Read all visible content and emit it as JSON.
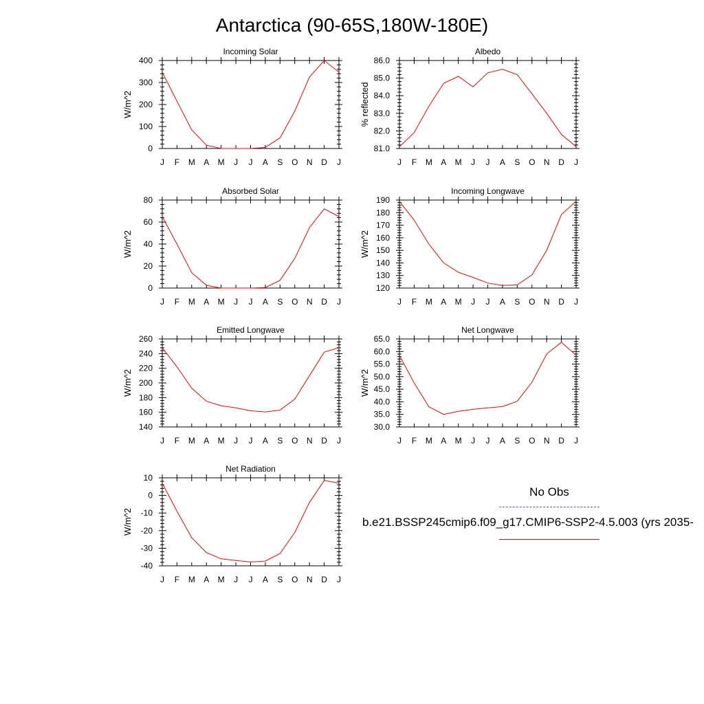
{
  "figure": {
    "title": "Antarctica (90-65S,180W-180E)",
    "legend": {
      "obs_label": "No Obs",
      "case_label": "b.e21.BSSP245cmip6.f09_g17.CMIP6-SSP2-4.5.003 (yrs 2035-",
      "obs_color": "#4d4dff",
      "model_color": "#ff0000"
    }
  },
  "chart_data": [
    {
      "type": "line",
      "title": "Incoming Solar",
      "ylabel": "W/m^2",
      "categories": [
        "J",
        "F",
        "M",
        "A",
        "M",
        "J",
        "J",
        "A",
        "S",
        "O",
        "N",
        "D",
        "J"
      ],
      "ylim": [
        0,
        400
      ],
      "yticks": [
        "0",
        "100",
        "200",
        "300",
        "400"
      ],
      "series": [
        {
          "color": "#ff0000",
          "values": [
            347,
            215,
            85,
            15,
            0,
            0,
            0,
            5,
            48,
            170,
            325,
            400,
            347
          ]
        }
      ]
    },
    {
      "type": "line",
      "title": "Albedo",
      "ylabel": "% reflected",
      "categories": [
        "J",
        "F",
        "M",
        "A",
        "M",
        "J",
        "J",
        "A",
        "S",
        "O",
        "N",
        "D",
        "J"
      ],
      "ylim": [
        81.0,
        86.0
      ],
      "yticks": [
        "81.0",
        "82.0",
        "83.0",
        "84.0",
        "85.0",
        "86.0"
      ],
      "series": [
        {
          "color": "#ff0000",
          "values": [
            81.1,
            81.9,
            83.4,
            84.7,
            85.1,
            84.5,
            85.3,
            85.5,
            85.2,
            84.1,
            83.0,
            81.8,
            81.1
          ]
        }
      ]
    },
    {
      "type": "line",
      "title": "Absorbed Solar",
      "ylabel": "W/m^2",
      "categories": [
        "J",
        "F",
        "M",
        "A",
        "M",
        "J",
        "J",
        "A",
        "S",
        "O",
        "N",
        "D",
        "J"
      ],
      "ylim": [
        0,
        80
      ],
      "yticks": [
        "0",
        "20",
        "40",
        "60",
        "80"
      ],
      "series": [
        {
          "color": "#ff0000",
          "values": [
            65,
            40,
            14,
            2.5,
            0,
            0,
            0,
            0.5,
            7,
            27,
            55,
            72,
            65
          ]
        }
      ]
    },
    {
      "type": "line",
      "title": "Incoming Longwave",
      "ylabel": "W/m^2",
      "categories": [
        "J",
        "F",
        "M",
        "A",
        "M",
        "J",
        "J",
        "A",
        "S",
        "O",
        "N",
        "D",
        "J"
      ],
      "ylim": [
        120,
        190
      ],
      "yticks": [
        "120",
        "130",
        "140",
        "150",
        "160",
        "170",
        "180",
        "190"
      ],
      "series": [
        {
          "color": "#ff0000",
          "values": [
            189,
            174,
            155,
            140,
            132.5,
            128.5,
            124,
            122,
            122.5,
            130.5,
            150,
            178.5,
            189
          ]
        }
      ]
    },
    {
      "type": "line",
      "title": "Emitted Longwave",
      "ylabel": "W/m^2",
      "categories": [
        "J",
        "F",
        "M",
        "A",
        "M",
        "J",
        "J",
        "A",
        "S",
        "O",
        "N",
        "D",
        "J"
      ],
      "ylim": [
        140,
        260
      ],
      "yticks": [
        "140",
        "160",
        "180",
        "200",
        "220",
        "240",
        "260"
      ],
      "series": [
        {
          "color": "#ff0000",
          "values": [
            248,
            222,
            193,
            175,
            169,
            166,
            162,
            160.5,
            163,
            178,
            210,
            242,
            248
          ]
        }
      ]
    },
    {
      "type": "line",
      "title": "Net Longwave",
      "ylabel": "W/m^2",
      "categories": [
        "J",
        "F",
        "M",
        "A",
        "M",
        "J",
        "J",
        "A",
        "S",
        "O",
        "N",
        "D",
        "J"
      ],
      "ylim": [
        30.0,
        65.0
      ],
      "yticks": [
        "30.0",
        "35.0",
        "40.0",
        "45.0",
        "50.0",
        "55.0",
        "60.0",
        "65.0"
      ],
      "series": [
        {
          "color": "#ff0000",
          "values": [
            58.5,
            47.5,
            38,
            35,
            36.2,
            37,
            37.6,
            38.1,
            40.2,
            47.8,
            59,
            63.7,
            58.5
          ]
        }
      ]
    },
    {
      "type": "line",
      "title": "Net Radiation",
      "ylabel": "W/m^2",
      "categories": [
        "J",
        "F",
        "M",
        "A",
        "M",
        "J",
        "J",
        "A",
        "S",
        "O",
        "N",
        "D",
        "J"
      ],
      "ylim": [
        -40,
        10
      ],
      "yticks": [
        "-40",
        "-30",
        "-20",
        "-10",
        "0",
        "10"
      ],
      "series": [
        {
          "color": "#ff0000",
          "values": [
            7,
            -9,
            -24,
            -32.5,
            -36,
            -37,
            -37.8,
            -37.3,
            -33,
            -21,
            -4,
            8.5,
            7
          ]
        }
      ]
    }
  ]
}
